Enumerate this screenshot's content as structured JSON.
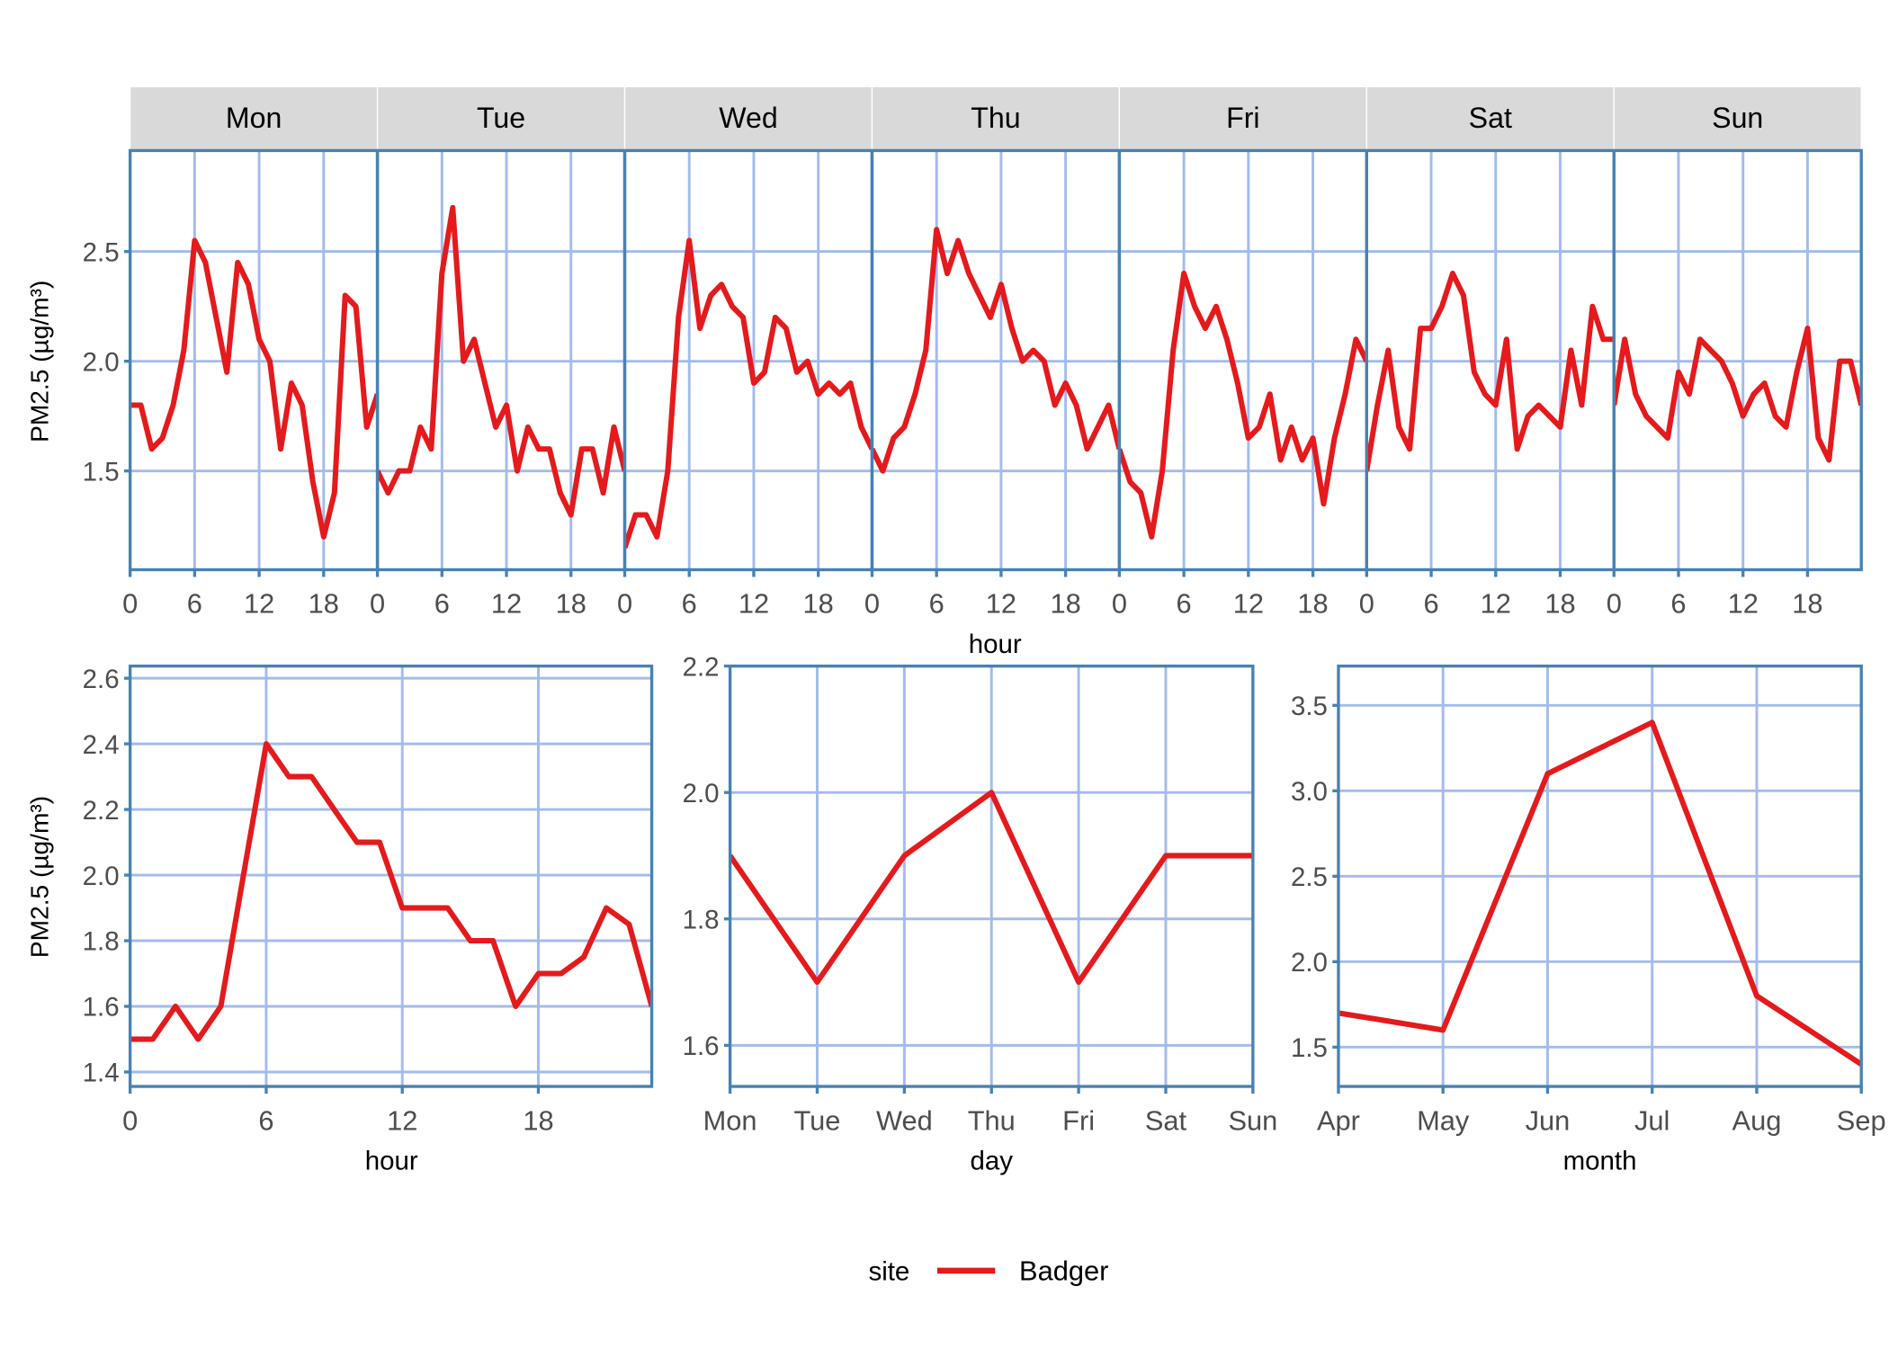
{
  "colors": {
    "line": "#e41a1c",
    "panel_border": "#4682b4",
    "grid": "#a3bbec",
    "strip_bg": "#d9d9d9"
  },
  "legend": {
    "title": "site",
    "entries": [
      "Badger"
    ],
    "placement": "bottom"
  },
  "chart_data": [
    {
      "type": "line",
      "facet_by": "day",
      "facets": [
        "Mon",
        "Tue",
        "Wed",
        "Thu",
        "Fri",
        "Sat",
        "Sun"
      ],
      "xlabel": "hour",
      "ylabel": "PM2.5 (µg/m³)",
      "x": [
        0,
        1,
        2,
        3,
        4,
        5,
        6,
        7,
        8,
        9,
        10,
        11,
        12,
        13,
        14,
        15,
        16,
        17,
        18,
        19,
        20,
        21,
        22,
        23
      ],
      "xticks": [
        0,
        6,
        12,
        18
      ],
      "xlim": [
        0,
        23
      ],
      "yticks": [
        1.5,
        2.0,
        2.5
      ],
      "ytick_labels": [
        "1.5",
        "2.0",
        "2.5"
      ],
      "ylim": [
        1.05,
        2.96
      ],
      "grid": true,
      "series": [
        {
          "name": "Badger",
          "values": {
            "Mon": [
              1.8,
              1.8,
              1.6,
              1.65,
              1.8,
              2.05,
              2.55,
              2.45,
              2.2,
              1.95,
              2.45,
              2.35,
              2.1,
              2.0,
              1.6,
              1.9,
              1.8,
              1.45,
              1.2,
              1.4,
              2.3,
              2.25,
              1.7,
              1.85
            ],
            "Tue": [
              1.5,
              1.4,
              1.5,
              1.5,
              1.7,
              1.6,
              2.4,
              2.7,
              2.0,
              2.1,
              1.9,
              1.7,
              1.8,
              1.5,
              1.7,
              1.6,
              1.6,
              1.4,
              1.3,
              1.6,
              1.6,
              1.4,
              1.7,
              1.5
            ],
            "Wed": [
              1.15,
              1.3,
              1.3,
              1.2,
              1.5,
              2.2,
              2.55,
              2.15,
              2.3,
              2.35,
              2.25,
              2.2,
              1.9,
              1.95,
              2.2,
              2.15,
              1.95,
              2.0,
              1.85,
              1.9,
              1.85,
              1.9,
              1.7,
              1.6
            ],
            "Thu": [
              1.6,
              1.5,
              1.65,
              1.7,
              1.85,
              2.05,
              2.6,
              2.4,
              2.55,
              2.4,
              2.3,
              2.2,
              2.35,
              2.15,
              2.0,
              2.05,
              2.0,
              1.8,
              1.9,
              1.8,
              1.6,
              1.7,
              1.8,
              1.6
            ],
            "Fri": [
              1.6,
              1.45,
              1.4,
              1.2,
              1.5,
              2.05,
              2.4,
              2.25,
              2.15,
              2.25,
              2.1,
              1.9,
              1.65,
              1.7,
              1.85,
              1.55,
              1.7,
              1.55,
              1.65,
              1.35,
              1.65,
              1.85,
              2.1,
              2.0
            ],
            "Sat": [
              1.5,
              1.8,
              2.05,
              1.7,
              1.6,
              2.15,
              2.15,
              2.25,
              2.4,
              2.3,
              1.95,
              1.85,
              1.8,
              2.1,
              1.6,
              1.75,
              1.8,
              1.75,
              1.7,
              2.05,
              1.8,
              2.25,
              2.1,
              2.1
            ],
            "Sun": [
              1.8,
              2.1,
              1.85,
              1.75,
              1.7,
              1.65,
              1.95,
              1.85,
              2.1,
              2.05,
              2.0,
              1.9,
              1.75,
              1.85,
              1.9,
              1.75,
              1.7,
              1.95,
              2.15,
              1.65,
              1.55,
              2.0,
              2.0,
              1.8
            ]
          }
        }
      ]
    },
    {
      "type": "line",
      "xlabel": "hour",
      "ylabel": "PM2.5 (µg/m³)",
      "x": [
        0,
        1,
        2,
        3,
        4,
        5,
        6,
        7,
        8,
        9,
        10,
        11,
        12,
        13,
        14,
        15,
        16,
        17,
        18,
        19,
        20,
        21,
        22,
        23
      ],
      "xticks": [
        0,
        6,
        12,
        18
      ],
      "xlim": [
        0,
        23
      ],
      "yticks": [
        1.4,
        1.6,
        1.8,
        2.0,
        2.2,
        2.4,
        2.6
      ],
      "ytick_labels": [
        "1.4",
        "1.6",
        "1.8",
        "2.0",
        "2.2",
        "2.4",
        "2.6"
      ],
      "ylim": [
        1.356,
        2.637
      ],
      "grid": true,
      "series": [
        {
          "name": "Badger",
          "values": [
            1.5,
            1.5,
            1.6,
            1.5,
            1.6,
            2.0,
            2.4,
            2.3,
            2.3,
            2.2,
            2.1,
            2.1,
            1.9,
            1.9,
            1.9,
            1.8,
            1.8,
            1.6,
            1.7,
            1.7,
            1.75,
            1.9,
            1.85,
            1.6
          ]
        }
      ]
    },
    {
      "type": "line",
      "xlabel": "day",
      "ylabel": "",
      "categories": [
        "Mon",
        "Tue",
        "Wed",
        "Thu",
        "Fri",
        "Sat",
        "Sun"
      ],
      "yticks": [
        1.6,
        1.8,
        2.0,
        2.2
      ],
      "ytick_labels": [
        "1.6",
        "1.8",
        "2.0",
        "2.2"
      ],
      "ylim": [
        1.535,
        2.2
      ],
      "grid": true,
      "series": [
        {
          "name": "Badger",
          "values": [
            1.9,
            1.7,
            1.9,
            2.0,
            1.7,
            1.9,
            1.9
          ]
        }
      ]
    },
    {
      "type": "line",
      "xlabel": "month",
      "ylabel": "",
      "categories": [
        "Apr",
        "May",
        "Jun",
        "Jul",
        "Aug",
        "Sep"
      ],
      "yticks": [
        1.5,
        2.0,
        2.5,
        3.0,
        3.5
      ],
      "ytick_labels": [
        "1.5",
        "2.0",
        "2.5",
        "3.0",
        "3.5"
      ],
      "ylim": [
        1.27,
        3.73
      ],
      "grid": true,
      "series": [
        {
          "name": "Badger",
          "values": [
            1.7,
            1.6,
            3.1,
            3.4,
            1.8,
            1.4
          ]
        }
      ]
    }
  ]
}
